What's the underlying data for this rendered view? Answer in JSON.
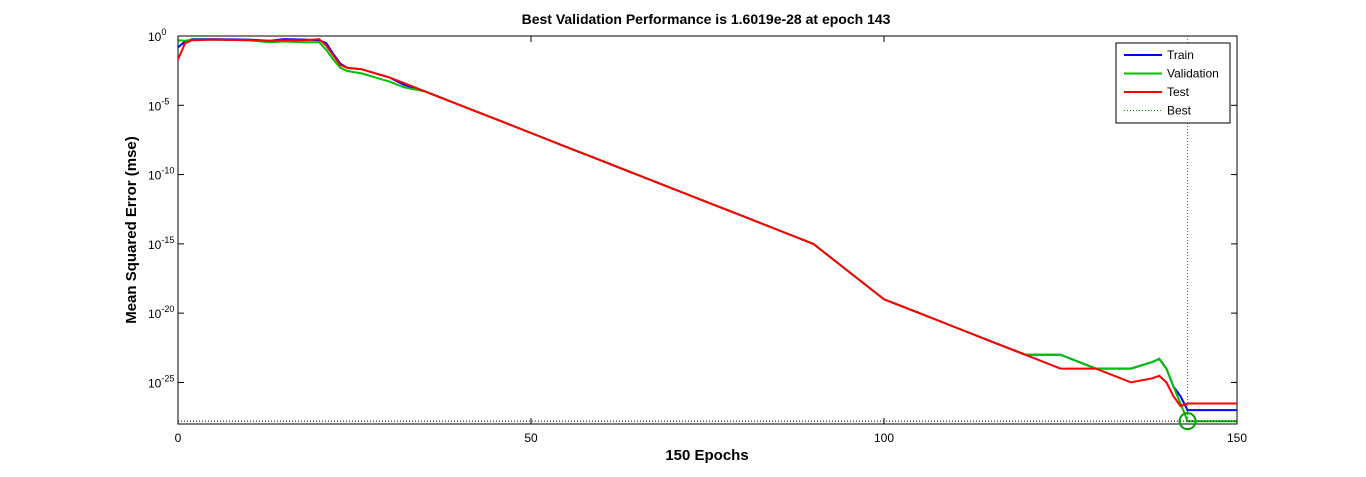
{
  "chart_data": {
    "type": "line",
    "title": "Best Validation Performance is 1.6019e-28 at epoch 143",
    "xlabel": "150 Epochs",
    "ylabel": "Mean Squared Error  (mse)",
    "xlim": [
      0,
      150
    ],
    "ylim": [
      1e-28,
      1
    ],
    "yscale": "log",
    "xticks": [
      0,
      50,
      100,
      150
    ],
    "yticks": [
      {
        "value": 1,
        "base": "10",
        "exp": "0"
      },
      {
        "value": 1e-05,
        "base": "10",
        "exp": "-5"
      },
      {
        "value": 1e-10,
        "base": "10",
        "exp": "-10"
      },
      {
        "value": 1e-15,
        "base": "10",
        "exp": "-15"
      },
      {
        "value": 1e-20,
        "base": "10",
        "exp": "-20"
      },
      {
        "value": 1e-25,
        "base": "10",
        "exp": "-25"
      }
    ],
    "legend_position": "top-right",
    "best": {
      "epoch": 143,
      "value": 1.6019e-28
    },
    "series": [
      {
        "name": "Train",
        "color": "#0000ff",
        "points": [
          [
            0,
            0.15
          ],
          [
            1,
            0.4
          ],
          [
            2,
            0.6
          ],
          [
            5,
            0.6
          ],
          [
            10,
            0.55
          ],
          [
            13,
            0.45
          ],
          [
            15,
            0.6
          ],
          [
            18,
            0.55
          ],
          [
            20,
            0.5
          ],
          [
            21,
            0.3
          ],
          [
            22,
            0.05
          ],
          [
            23,
            0.01
          ],
          [
            24,
            0.005
          ],
          [
            26,
            0.004
          ],
          [
            28,
            0.002
          ],
          [
            30,
            0.001
          ],
          [
            32,
            0.0003
          ],
          [
            35,
            0.0001
          ],
          [
            40,
            1e-05
          ],
          [
            45,
            1e-06
          ],
          [
            50,
            1e-07
          ],
          [
            55,
            1e-08
          ],
          [
            60,
            1e-09
          ],
          [
            65,
            1e-10
          ],
          [
            70,
            1e-11
          ],
          [
            75,
            1e-12
          ],
          [
            80,
            1e-13
          ],
          [
            85,
            1e-14
          ],
          [
            90,
            1e-15
          ],
          [
            95,
            1e-17
          ],
          [
            100,
            1e-19
          ],
          [
            105,
            1e-20
          ],
          [
            110,
            1e-21
          ],
          [
            115,
            1e-22
          ],
          [
            120,
            1e-23
          ],
          [
            125,
            1e-23
          ],
          [
            130,
            1e-24
          ],
          [
            135,
            1e-24
          ],
          [
            138,
            3e-24
          ],
          [
            139,
            5e-24
          ],
          [
            140,
            1e-24
          ],
          [
            141,
            5e-26
          ],
          [
            142,
            1e-26
          ],
          [
            143,
            1e-27
          ],
          [
            150,
            1e-27
          ]
        ]
      },
      {
        "name": "Validation",
        "color": "#00c000",
        "points": [
          [
            0,
            0.5
          ],
          [
            1,
            0.45
          ],
          [
            2,
            0.55
          ],
          [
            5,
            0.55
          ],
          [
            10,
            0.5
          ],
          [
            13,
            0.35
          ],
          [
            15,
            0.4
          ],
          [
            18,
            0.35
          ],
          [
            20,
            0.35
          ],
          [
            21,
            0.1
          ],
          [
            22,
            0.02
          ],
          [
            23,
            0.005
          ],
          [
            24,
            0.003
          ],
          [
            26,
            0.002
          ],
          [
            28,
            0.001
          ],
          [
            30,
            0.0005
          ],
          [
            32,
            0.0002
          ],
          [
            35,
            0.0001
          ],
          [
            40,
            1e-05
          ],
          [
            45,
            1e-06
          ],
          [
            50,
            1e-07
          ],
          [
            55,
            1e-08
          ],
          [
            60,
            1e-09
          ],
          [
            65,
            1e-10
          ],
          [
            70,
            1e-11
          ],
          [
            75,
            1e-12
          ],
          [
            80,
            1e-13
          ],
          [
            85,
            1e-14
          ],
          [
            90,
            1e-15
          ],
          [
            95,
            1e-17
          ],
          [
            100,
            1e-19
          ],
          [
            105,
            1e-20
          ],
          [
            110,
            1e-21
          ],
          [
            115,
            1e-22
          ],
          [
            120,
            1e-23
          ],
          [
            125,
            1e-23
          ],
          [
            130,
            1e-24
          ],
          [
            135,
            1e-24
          ],
          [
            138,
            3e-24
          ],
          [
            139,
            5e-24
          ],
          [
            140,
            1e-24
          ],
          [
            141,
            5e-26
          ],
          [
            142,
            3e-27
          ],
          [
            143,
            1.6019e-28
          ],
          [
            150,
            1.6019e-28
          ]
        ]
      },
      {
        "name": "Test",
        "color": "#ff0000",
        "points": [
          [
            0,
            0.02
          ],
          [
            1,
            0.3
          ],
          [
            2,
            0.5
          ],
          [
            5,
            0.55
          ],
          [
            10,
            0.5
          ],
          [
            13,
            0.45
          ],
          [
            15,
            0.5
          ],
          [
            18,
            0.5
          ],
          [
            20,
            0.6
          ],
          [
            21,
            0.2
          ],
          [
            22,
            0.04
          ],
          [
            23,
            0.008
          ],
          [
            24,
            0.005
          ],
          [
            26,
            0.004
          ],
          [
            28,
            0.002
          ],
          [
            30,
            0.001
          ],
          [
            32,
            0.0004
          ],
          [
            35,
            0.0001
          ],
          [
            40,
            1e-05
          ],
          [
            45,
            1e-06
          ],
          [
            50,
            1e-07
          ],
          [
            55,
            1e-08
          ],
          [
            60,
            1e-09
          ],
          [
            65,
            1e-10
          ],
          [
            70,
            1e-11
          ],
          [
            75,
            1e-12
          ],
          [
            80,
            1e-13
          ],
          [
            85,
            1e-14
          ],
          [
            90,
            1e-15
          ],
          [
            95,
            1e-17
          ],
          [
            100,
            1e-19
          ],
          [
            105,
            1e-20
          ],
          [
            110,
            1e-21
          ],
          [
            115,
            1e-22
          ],
          [
            120,
            1e-23
          ],
          [
            125,
            1e-24
          ],
          [
            130,
            1e-24
          ],
          [
            135,
            1e-25
          ],
          [
            138,
            2e-25
          ],
          [
            139,
            3e-25
          ],
          [
            140,
            1e-25
          ],
          [
            141,
            1e-26
          ],
          [
            142,
            2e-27
          ],
          [
            143,
            3e-27
          ],
          [
            150,
            3e-27
          ]
        ]
      }
    ],
    "legend_best_label": "Best"
  }
}
